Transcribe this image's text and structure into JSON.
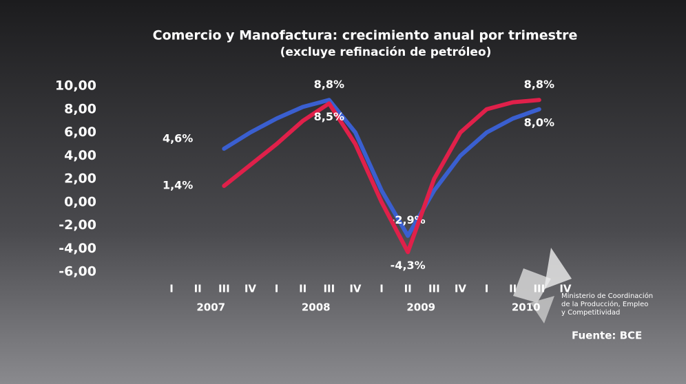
{
  "chart_data": {
    "type": "line",
    "title": "Comercio y Manofactura: crecimiento anual por trimestre",
    "subtitle": "(excluye refinación de petróleo)",
    "categories": [
      "I",
      "II",
      "III",
      "IV",
      "I",
      "II",
      "III",
      "IV",
      "I",
      "II",
      "III",
      "IV",
      "I",
      "II",
      "III",
      "IV"
    ],
    "year_labels": [
      "2007",
      "2008",
      "2009",
      "2010"
    ],
    "series": [
      {
        "color": "#3a5fd0",
        "values": [
          null,
          null,
          4.6,
          6,
          7.2,
          8.2,
          8.8,
          6,
          1,
          -2.9,
          1,
          4,
          6,
          7.2,
          8.0,
          null
        ],
        "value_labels": [
          null,
          null,
          "4,6%",
          null,
          null,
          null,
          "8,8%",
          null,
          null,
          "-2,9%",
          null,
          null,
          null,
          null,
          "8,0%",
          null
        ]
      },
      {
        "color": "#e0204a",
        "values": [
          null,
          null,
          1.4,
          3.2,
          5,
          7,
          8.5,
          5,
          0,
          -4.3,
          2,
          6,
          8,
          8.6,
          8.8,
          null
        ],
        "value_labels": [
          null,
          null,
          "1,4%",
          null,
          null,
          null,
          "8,5%",
          null,
          null,
          "-4,3%",
          null,
          null,
          null,
          null,
          "8,8%",
          null
        ]
      }
    ],
    "ylim": [
      -6,
      10
    ],
    "yticks": [
      {
        "value": 10,
        "label": "10,00"
      },
      {
        "value": 8,
        "label": "8,00"
      },
      {
        "value": 6,
        "label": "6,00"
      },
      {
        "value": 4,
        "label": "4,00"
      },
      {
        "value": 2,
        "label": "2,00"
      },
      {
        "value": 0,
        "label": "0,00"
      },
      {
        "value": -2,
        "label": "-2,00"
      },
      {
        "value": -4,
        "label": "-4,00"
      },
      {
        "value": -6,
        "label": "-6,00"
      }
    ],
    "annotations": [
      "Ministerio de Coordinación",
      "de la Producción, Empleo",
      "y Competitividad"
    ],
    "source": "Fuente: BCE"
  }
}
